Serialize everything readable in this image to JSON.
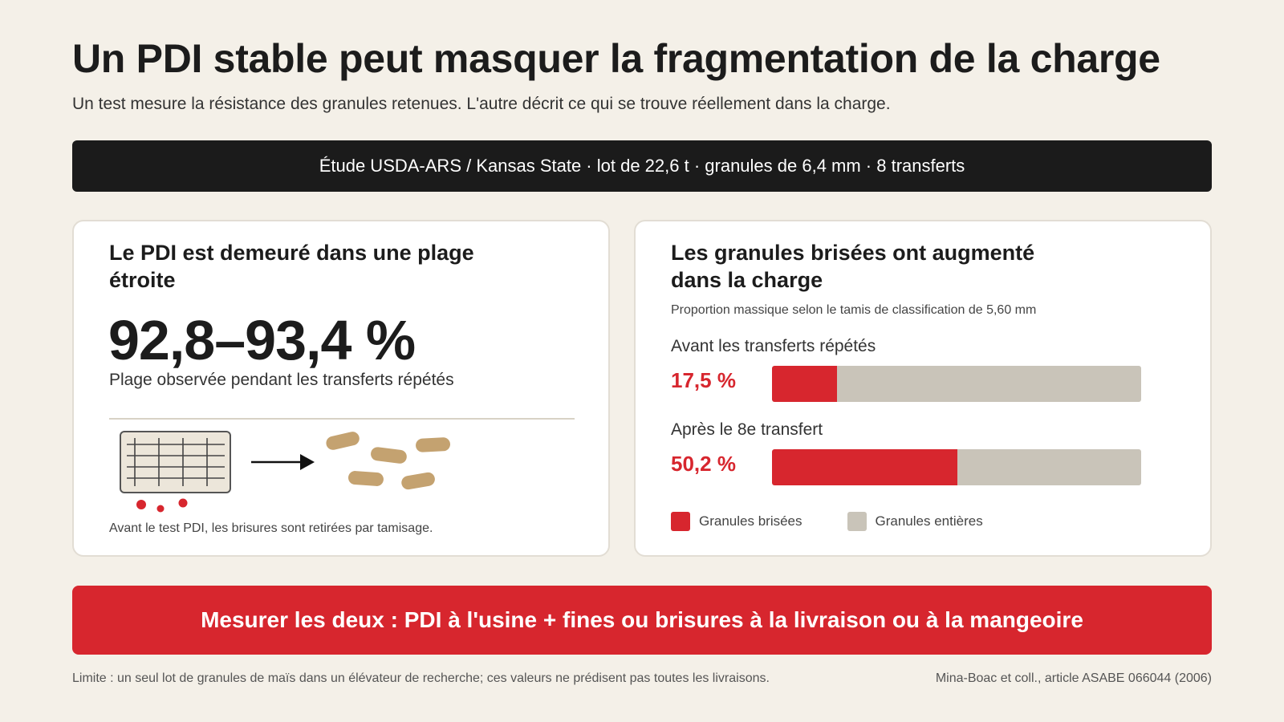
{
  "header": {
    "title": "Un PDI stable peut masquer la fragmentation de la charge",
    "subtitle": "Un test mesure la résistance des granules retenues. L'autre décrit ce qui se trouve réellement dans la charge."
  },
  "study_bar": {
    "text": "Étude USDA-ARS / Kansas State · lot de 22,6 t · granules de 6,4 mm · 8 transferts"
  },
  "pdi_card": {
    "title": "Le PDI est demeuré dans une plage étroite",
    "value": "92,8–93,4 %",
    "caption": "Plage observée pendant les transferts répétés",
    "illustration_caption": "Avant le test PDI, les brisures sont retirées par tamisage.",
    "icons": [
      "sieve-icon",
      "arrow-right-icon",
      "pellet-icon",
      "fines-dot-icon"
    ]
  },
  "breakage_card": {
    "title": "Les granules brisées ont augmenté dans la charge",
    "note": "Proportion massique selon le tamis de classification de 5,60 mm",
    "rows": [
      {
        "label": "Avant les transferts répétés",
        "value_text": "17,5 %",
        "broken_percent": 17.5
      },
      {
        "label": "Après le 8e transfert",
        "value_text": "50,2 %",
        "broken_percent": 50.2
      }
    ],
    "legend": [
      {
        "label": "Granules brisées",
        "color": "#d7262e"
      },
      {
        "label": "Granules entières",
        "color": "#c9c4b9"
      }
    ]
  },
  "cta": {
    "text": "Mesurer les deux : PDI à l'usine + fines ou brisures à la livraison ou à la mangeoire"
  },
  "footer": {
    "limit": "Limite : un seul lot de granules de maïs dans un élévateur de recherche; ces valeurs ne prédisent pas toutes les livraisons.",
    "source": "Mina-Boac et coll., article ASABE 066044 (2006)"
  },
  "colors": {
    "background": "#f4f0e8",
    "accent_red": "#d7262e",
    "dark_bar": "#1b1b1b",
    "whole_gray": "#c9c4b9",
    "pellet_tan": "#c4a270"
  }
}
